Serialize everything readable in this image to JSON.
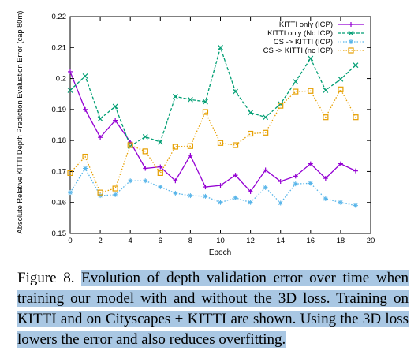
{
  "chart_data": {
    "type": "line",
    "xlabel": "Epoch",
    "ylabel": "Absolute Relative KITTI Depth Prediction Evaluation Error (cap 80m)",
    "xlim": [
      0,
      20
    ],
    "ylim": [
      0.15,
      0.22
    ],
    "x_ticks": [
      "0",
      "2",
      "4",
      "6",
      "8",
      "10",
      "12",
      "14",
      "16",
      "18",
      "20"
    ],
    "y_ticks": [
      "0.15",
      "0.16",
      "0.17",
      "0.18",
      "0.19",
      "0.2",
      "0.21",
      "0.22"
    ],
    "grid": false,
    "legend_position": "top-right",
    "x": [
      0,
      1,
      2,
      3,
      4,
      5,
      6,
      7,
      8,
      9,
      10,
      11,
      12,
      13,
      14,
      15,
      16,
      17,
      18,
      19
    ],
    "series": [
      {
        "name": "KITTI only (ICP)",
        "color": "#9400d3",
        "marker": "plus",
        "dash": "solid",
        "values": [
          0.2022,
          0.19,
          0.181,
          0.1865,
          0.1795,
          0.171,
          0.1715,
          0.167,
          0.1752,
          0.165,
          0.1655,
          0.1688,
          0.1635,
          0.1705,
          0.1668,
          0.1685,
          0.1725,
          0.1678,
          0.1725,
          0.1702
        ]
      },
      {
        "name": "KITTI only (No ICP)",
        "color": "#009e73",
        "marker": "x",
        "dash": "dashed",
        "values": [
          0.1962,
          0.2008,
          0.187,
          0.191,
          0.1782,
          0.1812,
          0.1795,
          0.1942,
          0.1932,
          0.1925,
          0.21,
          0.1958,
          0.189,
          0.1875,
          0.1918,
          0.199,
          0.2065,
          0.1962,
          0.1998,
          0.2043
        ]
      },
      {
        "name": "CS -> KITTI (ICP)",
        "color": "#56b4e9",
        "marker": "star",
        "dash": "dotted",
        "values": [
          0.1632,
          0.171,
          0.1622,
          0.1625,
          0.167,
          0.167,
          0.165,
          0.163,
          0.1622,
          0.162,
          0.16,
          0.1615,
          0.16,
          0.1648,
          0.1598,
          0.166,
          0.1662,
          0.1612,
          0.16,
          0.159
        ]
      },
      {
        "name": "CS -> KITTI (no ICP)",
        "color": "#e69f00",
        "marker": "square",
        "dash": "dotted",
        "values": [
          0.1695,
          0.1748,
          0.1632,
          0.1645,
          0.1785,
          0.1765,
          0.1695,
          0.178,
          0.1782,
          0.1892,
          0.1792,
          0.1785,
          0.1822,
          0.1825,
          0.1912,
          0.1958,
          0.196,
          0.1875,
          0.1965,
          0.1875
        ]
      }
    ]
  },
  "caption": {
    "label": "Figure 8. ",
    "text": "Evolution of depth validation error over time when training our model with and without the 3D loss. Training on KITTI and on Cityscapes + KITTI are shown. Using the 3D loss lowers the error and also reduces overfitting."
  }
}
